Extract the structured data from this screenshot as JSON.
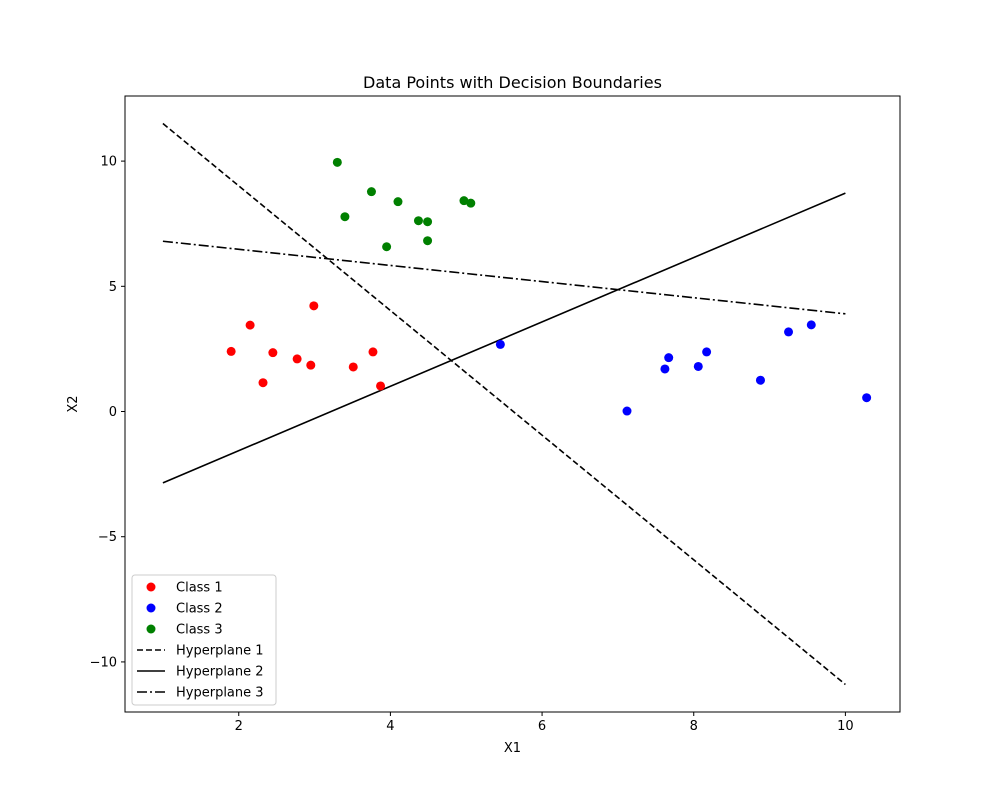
{
  "chart_data": {
    "type": "scatter",
    "title": "Data Points with Decision Boundaries",
    "xlabel": "X1",
    "ylabel": "X2",
    "xlim": [
      0.5,
      10.72
    ],
    "ylim": [
      -12.0,
      12.6
    ],
    "xticks": [
      2,
      4,
      6,
      8,
      10
    ],
    "yticks": [
      -10,
      -5,
      0,
      5,
      10
    ],
    "xtick_labels": [
      "2",
      "4",
      "6",
      "8",
      "10"
    ],
    "ytick_labels": [
      "−10",
      "−5",
      "0",
      "5",
      "10"
    ],
    "grid": false,
    "legend_position": "lower-left",
    "series": [
      {
        "name": "Class 1",
        "kind": "scatter",
        "color": "#ff0000",
        "points": [
          [
            1.9,
            2.4
          ],
          [
            2.15,
            3.45
          ],
          [
            2.32,
            1.15
          ],
          [
            2.45,
            2.35
          ],
          [
            2.77,
            2.1
          ],
          [
            2.95,
            1.85
          ],
          [
            2.99,
            4.22
          ],
          [
            3.51,
            1.78
          ],
          [
            3.77,
            2.38
          ],
          [
            3.87,
            1.02
          ]
        ]
      },
      {
        "name": "Class 2",
        "kind": "scatter",
        "color": "#0000ff",
        "points": [
          [
            5.45,
            2.68
          ],
          [
            7.12,
            0.02
          ],
          [
            7.62,
            1.7
          ],
          [
            7.67,
            2.15
          ],
          [
            8.06,
            1.8
          ],
          [
            8.17,
            2.38
          ],
          [
            8.88,
            1.25
          ],
          [
            9.25,
            3.18
          ],
          [
            9.55,
            3.46
          ],
          [
            10.28,
            0.55
          ]
        ]
      },
      {
        "name": "Class 3",
        "kind": "scatter",
        "color": "#008000",
        "points": [
          [
            3.3,
            9.95
          ],
          [
            3.4,
            7.78
          ],
          [
            3.75,
            8.78
          ],
          [
            3.95,
            6.58
          ],
          [
            4.1,
            8.38
          ],
          [
            4.37,
            7.62
          ],
          [
            4.49,
            7.58
          ],
          [
            4.49,
            6.82
          ],
          [
            4.97,
            8.42
          ],
          [
            5.06,
            8.32
          ]
        ]
      },
      {
        "name": "Hyperplane 1",
        "kind": "line",
        "style": "dashed",
        "color": "#000000",
        "points": [
          [
            1.0,
            11.5
          ],
          [
            10.0,
            -10.9
          ]
        ]
      },
      {
        "name": "Hyperplane 2",
        "kind": "line",
        "style": "solid",
        "color": "#000000",
        "points": [
          [
            1.0,
            -2.85
          ],
          [
            10.0,
            8.72
          ]
        ]
      },
      {
        "name": "Hyperplane 3",
        "kind": "line",
        "style": "dashdot",
        "color": "#000000",
        "points": [
          [
            1.0,
            6.8
          ],
          [
            10.0,
            3.9
          ]
        ]
      }
    ]
  }
}
